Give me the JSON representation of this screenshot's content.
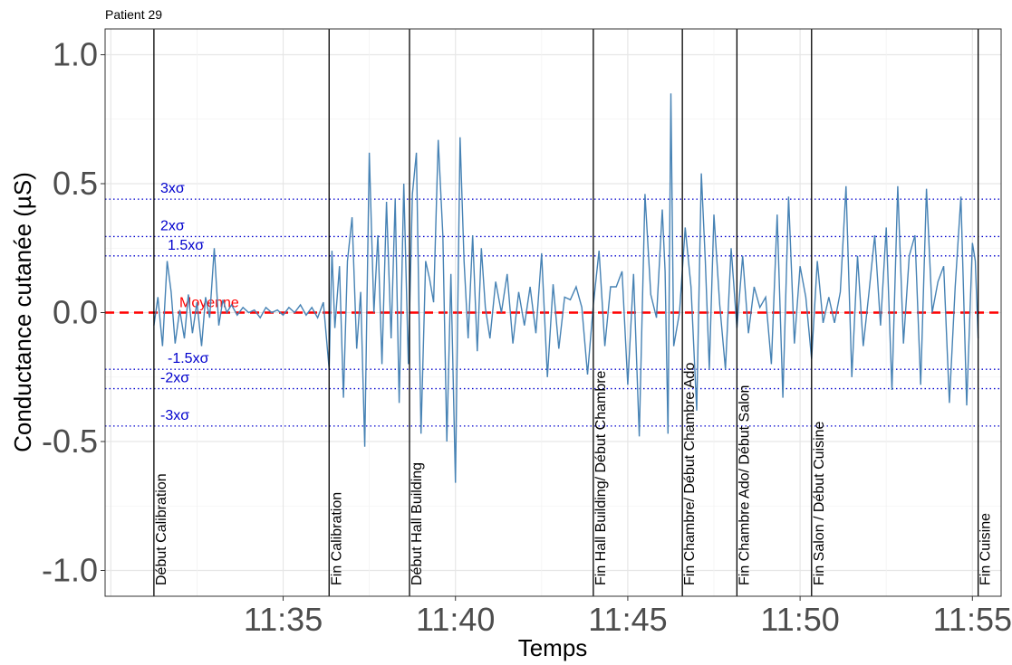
{
  "chart_data": {
    "type": "line",
    "title": "Patient 29",
    "xlabel": "Temps",
    "ylabel": "Conductance cutanée (µS)",
    "xlim": [
      "11:29:50",
      "11:55:50"
    ],
    "ylim": [
      -1.1,
      1.1
    ],
    "yticks": [
      {
        "value": 1.0,
        "label": "1.0"
      },
      {
        "value": 0.5,
        "label": "0.5"
      },
      {
        "value": 0.0,
        "label": "0.0"
      },
      {
        "value": -0.5,
        "label": "-0.5"
      },
      {
        "value": -1.0,
        "label": "-1.0"
      }
    ],
    "xticks": [
      {
        "value": "11:35",
        "label": "11:35"
      },
      {
        "value": "11:40",
        "label": "11:40"
      },
      {
        "value": "11:45",
        "label": "11:45"
      },
      {
        "value": "11:50",
        "label": "11:50"
      },
      {
        "value": "11:55",
        "label": "11:55"
      }
    ],
    "grid": true,
    "series_color": "#4682b4",
    "mean": {
      "value": 0.0,
      "label": "Moyenne",
      "color": "#ff0000"
    },
    "sigma_lines": [
      {
        "value": 0.44,
        "label": "3xσ"
      },
      {
        "value": 0.295,
        "label": "2xσ"
      },
      {
        "value": 0.22,
        "label": "1.5xσ"
      },
      {
        "value": -0.22,
        "label": "-1.5xσ"
      },
      {
        "value": -0.295,
        "label": "-2xσ"
      },
      {
        "value": -0.44,
        "label": "-3xσ"
      }
    ],
    "sigma_color": "#0000cd",
    "events": [
      {
        "time": "11:31:15",
        "label": "Début Calibration"
      },
      {
        "time": "11:36:20",
        "label": "Fin Calibration"
      },
      {
        "time": "11:38:40",
        "label": "Début Hall Building"
      },
      {
        "time": "11:44:00",
        "label": "Fin Hall Building/ Début Chambre"
      },
      {
        "time": "11:46:35",
        "label": "Fin Chambre/ Début Chambre Ado"
      },
      {
        "time": "11:48:10",
        "label": "Fin Chambre Ado/ Début Salon"
      },
      {
        "time": "11:50:20",
        "label": "Fin Salon / Début Cuisine"
      },
      {
        "time": "11:55:10",
        "label": "Fin Cuisine"
      }
    ],
    "series": [
      {
        "x": [
          "11:31:15",
          "11:31:22",
          "11:31:30",
          "11:31:38",
          "11:31:45",
          "11:31:52",
          "11:32:00",
          "11:32:08",
          "11:32:15",
          "11:32:22",
          "11:32:30",
          "11:32:38",
          "11:32:45",
          "11:32:52",
          "11:33:00",
          "11:33:08",
          "11:33:15",
          "11:33:22",
          "11:33:30",
          "11:33:40",
          "11:33:50",
          "11:34:00",
          "11:34:10",
          "11:34:20",
          "11:34:30",
          "11:34:40",
          "11:34:50",
          "11:35:00",
          "11:35:10",
          "11:35:20",
          "11:35:30",
          "11:35:40",
          "11:35:50",
          "11:36:00",
          "11:36:10",
          "11:36:20",
          "11:36:25",
          "11:36:30",
          "11:36:38",
          "11:36:45",
          "11:36:52",
          "11:37:00",
          "11:37:08",
          "11:37:15",
          "11:37:22",
          "11:37:30",
          "11:37:38",
          "11:37:45",
          "11:37:52",
          "11:38:00",
          "11:38:08",
          "11:38:15",
          "11:38:22",
          "11:38:30",
          "11:38:38",
          "11:38:45",
          "11:38:52",
          "11:39:00",
          "11:39:08",
          "11:39:15",
          "11:39:22",
          "11:39:30",
          "11:39:38",
          "11:39:45",
          "11:39:52",
          "11:40:00",
          "11:40:08",
          "11:40:15",
          "11:40:22",
          "11:40:30",
          "11:40:38",
          "11:40:45",
          "11:40:52",
          "11:41:00",
          "11:41:10",
          "11:41:20",
          "11:41:30",
          "11:41:40",
          "11:41:50",
          "11:42:00",
          "11:42:10",
          "11:42:20",
          "11:42:30",
          "11:42:40",
          "11:42:50",
          "11:43:00",
          "11:43:10",
          "11:43:20",
          "11:43:30",
          "11:43:40",
          "11:43:50",
          "11:44:00",
          "11:44:10",
          "11:44:20",
          "11:44:30",
          "11:44:40",
          "11:44:50",
          "11:45:00",
          "11:45:10",
          "11:45:20",
          "11:45:30",
          "11:45:40",
          "11:45:50",
          "11:46:00",
          "11:46:05",
          "11:46:10",
          "11:46:15",
          "11:46:20",
          "11:46:30",
          "11:46:40",
          "11:46:50",
          "11:47:00",
          "11:47:08",
          "11:47:15",
          "11:47:22",
          "11:47:30",
          "11:47:40",
          "11:47:50",
          "11:48:00",
          "11:48:10",
          "11:48:20",
          "11:48:30",
          "11:48:40",
          "11:48:50",
          "11:49:00",
          "11:49:10",
          "11:49:20",
          "11:49:30",
          "11:49:40",
          "11:49:50",
          "11:50:00",
          "11:50:10",
          "11:50:20",
          "11:50:30",
          "11:50:40",
          "11:50:50",
          "11:51:00",
          "11:51:10",
          "11:51:20",
          "11:51:30",
          "11:51:40",
          "11:51:50",
          "11:52:00",
          "11:52:10",
          "11:52:20",
          "11:52:30",
          "11:52:40",
          "11:52:50",
          "11:53:00",
          "11:53:10",
          "11:53:20",
          "11:53:30",
          "11:53:40",
          "11:53:50",
          "11:54:00",
          "11:54:10",
          "11:54:20",
          "11:54:30",
          "11:54:40",
          "11:54:50",
          "11:55:00",
          "11:55:05",
          "11:55:10"
        ],
        "y": [
          -0.05,
          0.06,
          -0.13,
          0.2,
          0.08,
          -0.12,
          0.01,
          -0.1,
          0.07,
          -0.08,
          0.04,
          -0.13,
          0.06,
          -0.02,
          0.25,
          -0.05,
          0.05,
          0.0,
          0.03,
          -0.01,
          0.02,
          0.0,
          0.01,
          -0.02,
          0.02,
          0.0,
          0.01,
          -0.01,
          0.02,
          0.0,
          0.03,
          -0.01,
          0.02,
          -0.02,
          0.04,
          -0.22,
          0.24,
          -0.06,
          0.18,
          -0.33,
          0.2,
          0.37,
          -0.14,
          0.08,
          -0.52,
          0.62,
          0.0,
          0.3,
          -0.2,
          0.43,
          -0.1,
          0.44,
          -0.35,
          0.5,
          -0.2,
          0.46,
          0.62,
          -0.47,
          0.2,
          0.13,
          0.04,
          0.67,
          0.3,
          -0.5,
          0.15,
          -0.66,
          0.68,
          0.2,
          -0.1,
          0.3,
          -0.15,
          0.25,
          0.02,
          -0.1,
          0.12,
          0.0,
          0.15,
          -0.12,
          0.08,
          -0.05,
          0.1,
          -0.08,
          0.23,
          -0.25,
          0.11,
          -0.14,
          0.06,
          0.05,
          0.1,
          0.02,
          -0.24,
          0.03,
          0.24,
          -0.13,
          0.1,
          0.1,
          0.16,
          -0.28,
          0.15,
          -0.48,
          0.46,
          0.07,
          -0.02,
          0.4,
          0.16,
          -0.47,
          0.85,
          -0.13,
          0.0,
          0.33,
          0.1,
          -0.38,
          0.54,
          0.2,
          -0.22,
          0.38,
          0.03,
          -0.22,
          0.25,
          -0.06,
          0.22,
          -0.08,
          0.1,
          0.02,
          0.06,
          -0.2,
          0.38,
          -0.33,
          0.45,
          -0.12,
          0.18,
          0.06,
          -0.18,
          0.2,
          -0.04,
          0.06,
          -0.04,
          0.08,
          0.49,
          -0.25,
          0.22,
          -0.13,
          0.08,
          0.3,
          -0.05,
          0.33,
          -0.3,
          0.49,
          -0.12,
          0.22,
          0.3,
          -0.28,
          0.48,
          0.0,
          0.12,
          0.18,
          -0.35,
          0.1,
          0.45,
          -0.36,
          0.27,
          0.2,
          -0.1
        ]
      }
    ]
  }
}
